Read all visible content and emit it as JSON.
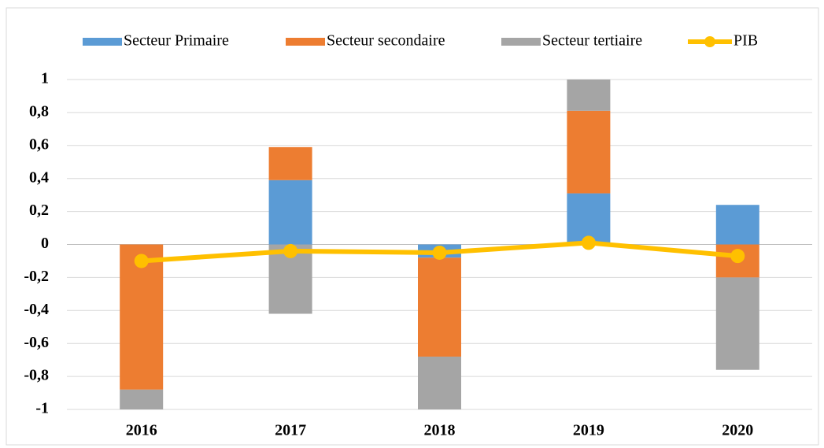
{
  "chart_data": {
    "type": "stacked_bar_line",
    "categories": [
      "2016",
      "2017",
      "2018",
      "2019",
      "2020"
    ],
    "series": [
      {
        "name": "Secteur Primaire",
        "color": "#5b9bd5",
        "values": [
          0,
          0.39,
          -0.08,
          0.31,
          0.24
        ]
      },
      {
        "name": "Secteur secondaire",
        "color": "#ed7d31",
        "values": [
          -0.88,
          0.2,
          -0.6,
          0.5,
          -0.2
        ]
      },
      {
        "name": "Secteur tertiaire",
        "color": "#a5a5a5",
        "values": [
          -0.12,
          -0.42,
          -0.32,
          0.19,
          -0.56
        ]
      },
      {
        "name": "PIB",
        "color": "#ffc000",
        "type": "line",
        "values": [
          -0.1,
          -0.04,
          -0.05,
          0.01,
          -0.07
        ]
      }
    ],
    "ylim": [
      -1,
      1
    ],
    "yticks": [
      -1,
      {
        "value": -0.8,
        "label": "-0,8"
      },
      {
        "value": -0.6,
        "label": "-0,6"
      },
      {
        "value": -0.4,
        "label": "-0,4"
      },
      {
        "value": -0.2,
        "label": "-0,2"
      },
      0,
      {
        "value": 0.2,
        "label": "0,2"
      },
      {
        "value": 0.4,
        "label": "0,4"
      },
      {
        "value": 0.6,
        "label": "0,6"
      },
      {
        "value": 0.8,
        "label": "0,8"
      },
      1
    ],
    "grid": true,
    "legend": "top"
  }
}
